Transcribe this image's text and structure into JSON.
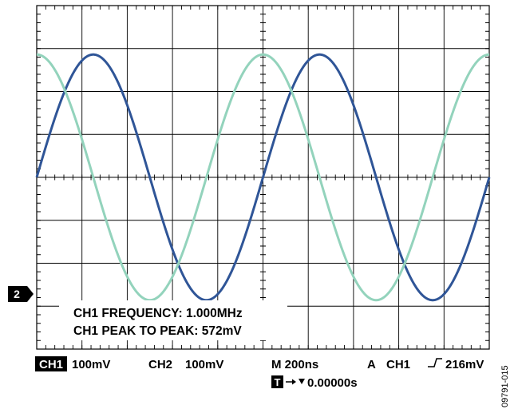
{
  "chart_data": {
    "type": "line",
    "title": "",
    "grid": true,
    "x_divisions": 10,
    "y_divisions": 8,
    "x_per_division_ns": 200,
    "y_per_division_mV": 100,
    "series": [
      {
        "name": "CH1",
        "color": "#2f5597",
        "waveform": "sine",
        "frequency_MHz": 1.0,
        "peak_to_peak_mV": 572,
        "phase_deg": 0
      },
      {
        "name": "CH2",
        "color": "#93d3bc",
        "waveform": "sine",
        "frequency_MHz": 1.0,
        "peak_to_peak_mV": 572,
        "phase_deg": 90
      }
    ],
    "annotations": {
      "line1": "CH1 FREQUENCY: 1.000MHz",
      "line2": "CH1 PEAK TO PEAK: 572mV"
    },
    "marker_label": "2"
  },
  "status": {
    "ch1_badge": "CH1",
    "ch1_scale": "100mV",
    "ch2_label": "CH2",
    "ch2_scale": "100mV",
    "timebase": "M 200ns",
    "trigger_mode": "A",
    "trigger_source": "CH1",
    "trigger_level": "216mV",
    "t_badge": "T",
    "trigger_offset": "0.00000s"
  },
  "figure_id": "09791-015"
}
